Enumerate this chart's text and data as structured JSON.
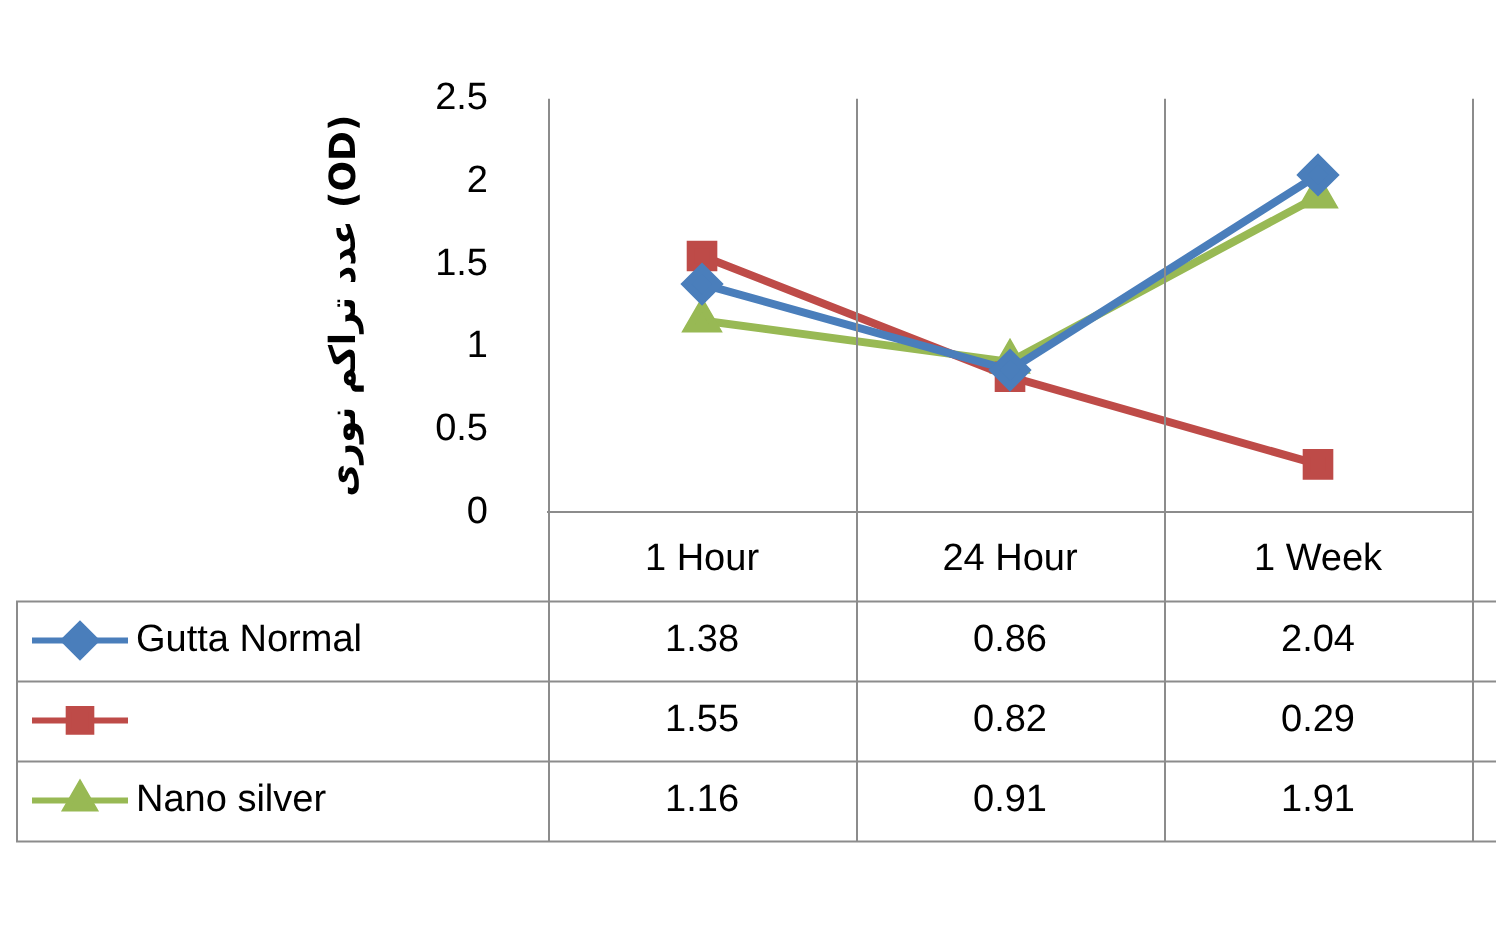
{
  "chart_data": {
    "type": "line",
    "ylabel": "عدد تراکم نوری (OD)",
    "categories": [
      "1 Hour",
      "24 Hour",
      "1 Week"
    ],
    "series": [
      {
        "name": "Gutta Normal",
        "color": "#4a7ebb",
        "marker": "diamond",
        "values": [
          1.38,
          0.86,
          2.04
        ]
      },
      {
        "color": "#be4b48",
        "marker": "square",
        "values": [
          1.55,
          0.82,
          0.29
        ]
      },
      {
        "name": "Nano silver",
        "color": "#98b954",
        "marker": "triangle",
        "values": [
          1.16,
          0.91,
          1.91
        ]
      }
    ],
    "ylim": [
      0,
      2.5
    ],
    "yticks": [
      0,
      0.5,
      1,
      1.5,
      2,
      2.5
    ],
    "grid": "x",
    "data_labels": true,
    "legend": "bottom left"
  }
}
